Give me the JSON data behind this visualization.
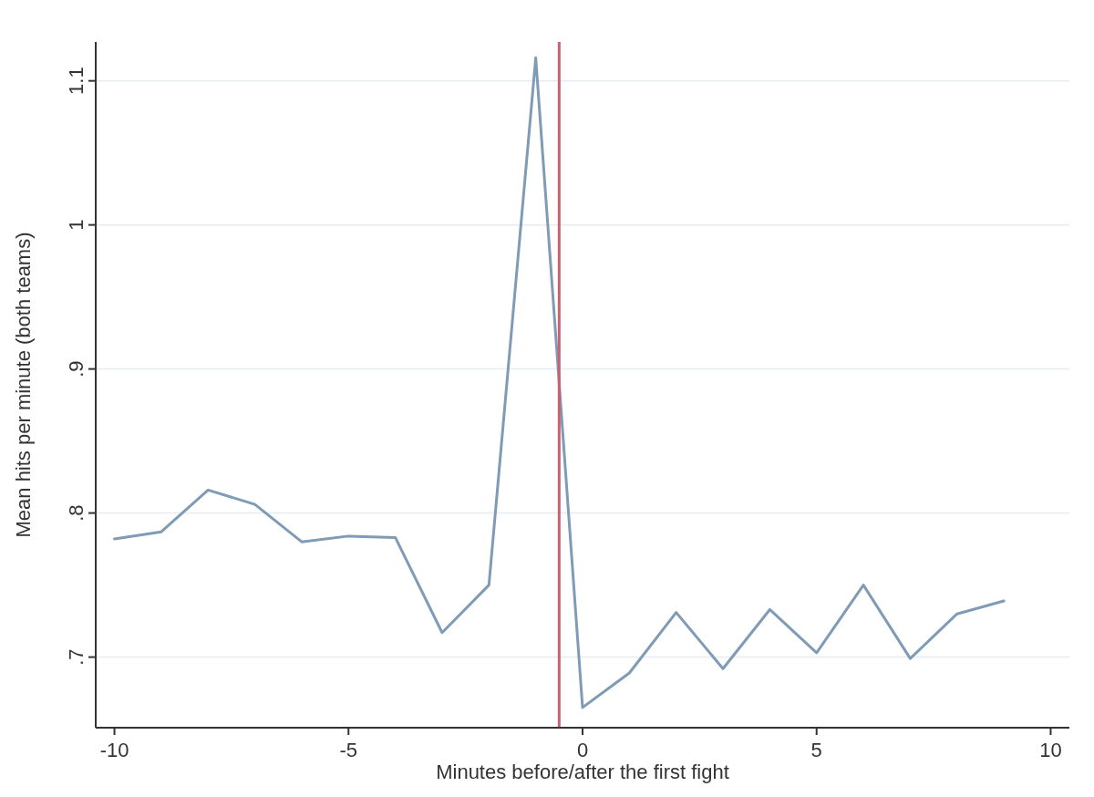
{
  "chart_data": {
    "type": "line",
    "xlabel": "Minutes before/after the first fight",
    "ylabel": "Mean hits per minute (both teams)",
    "x": [
      -10,
      -9,
      -8,
      -7,
      -6,
      -5,
      -4,
      -3,
      -2,
      -1,
      0,
      1,
      2,
      3,
      4,
      5,
      6,
      7,
      8,
      9
    ],
    "series": [
      {
        "color": "#7f9bb5",
        "values": [
          0.782,
          0.787,
          0.816,
          0.806,
          0.78,
          0.784,
          0.783,
          0.717,
          0.75,
          1.116,
          0.665,
          0.689,
          0.731,
          0.692,
          0.733,
          0.703,
          0.75,
          0.699,
          0.73,
          0.739
        ]
      }
    ],
    "xlim": [
      -10.4,
      10.4
    ],
    "ylim": [
      0.651,
      1.127
    ],
    "xticks": [
      -10,
      -5,
      0,
      5,
      10
    ],
    "yticks": [
      {
        "value": 0.7,
        "label": ".7"
      },
      {
        "value": 0.8,
        "label": ".8"
      },
      {
        "value": 0.9,
        "label": ".9"
      },
      {
        "value": 1,
        "label": "1"
      },
      {
        "value": 1.1,
        "label": "1.1"
      }
    ],
    "ref_lines": [
      {
        "axis": "x",
        "value": -0.5,
        "color": "#c8626e"
      }
    ],
    "grid": "y",
    "marker": "none",
    "line_style": "solid"
  }
}
